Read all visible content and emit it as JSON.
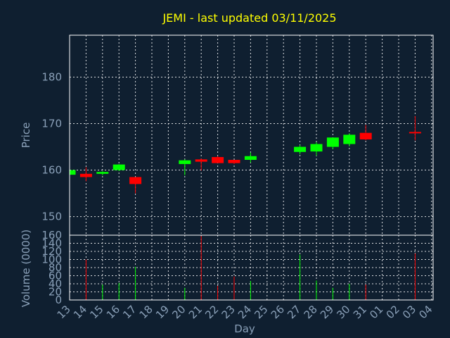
{
  "chart_data": [
    {
      "type": "candlestick",
      "title": "JEMI - last updated 03/11/2025",
      "ylabel": "Price",
      "ylim": [
        146,
        189
      ],
      "yticks": [
        150,
        160,
        170,
        180
      ],
      "grid": true,
      "colors": {
        "up": "#00ff00",
        "down": "#ff0000",
        "background": "#0f1f30",
        "text": "#8aa0b8",
        "title": "#ffff00"
      },
      "categories": [
        "13",
        "14",
        "15",
        "16",
        "17",
        "18",
        "19",
        "20",
        "21",
        "22",
        "23",
        "24",
        "25",
        "26",
        "27",
        "28",
        "29",
        "30",
        "31",
        "01",
        "02",
        "03",
        "04"
      ],
      "candles": [
        {
          "day": "13",
          "open": 159.0,
          "high": 160.0,
          "low": 158.8,
          "close": 160.0
        },
        {
          "day": "14",
          "open": 159.2,
          "high": 160.6,
          "low": 157.6,
          "close": 158.5
        },
        {
          "day": "15",
          "open": 159.2,
          "high": 159.8,
          "low": 158.9,
          "close": 159.6
        },
        {
          "day": "16",
          "open": 160.0,
          "high": 161.3,
          "low": 159.8,
          "close": 161.2
        },
        {
          "day": "17",
          "open": 158.5,
          "high": 158.5,
          "low": 155.0,
          "close": 157.0
        },
        {
          "day": "20",
          "open": 161.3,
          "high": 162.3,
          "low": 158.9,
          "close": 162.1
        },
        {
          "day": "21",
          "open": 162.3,
          "high": 162.5,
          "low": 159.9,
          "close": 161.8
        },
        {
          "day": "22",
          "open": 162.8,
          "high": 163.0,
          "low": 161.5,
          "close": 161.5
        },
        {
          "day": "23",
          "open": 162.2,
          "high": 162.2,
          "low": 161.3,
          "close": 161.5
        },
        {
          "day": "24",
          "open": 162.2,
          "high": 163.8,
          "low": 161.6,
          "close": 163.0
        },
        {
          "day": "27",
          "open": 163.9,
          "high": 165.4,
          "low": 163.4,
          "close": 165.0
        },
        {
          "day": "28",
          "open": 164.0,
          "high": 166.0,
          "low": 163.1,
          "close": 165.6
        },
        {
          "day": "29",
          "open": 165.0,
          "high": 167.0,
          "low": 164.5,
          "close": 167.0
        },
        {
          "day": "30",
          "open": 165.6,
          "high": 167.9,
          "low": 165.1,
          "close": 167.6
        },
        {
          "day": "31",
          "open": 168.0,
          "high": 169.7,
          "low": 166.4,
          "close": 166.6
        },
        {
          "day": "03",
          "open": 168.2,
          "high": 171.6,
          "low": 166.4,
          "close": 168.0
        }
      ]
    },
    {
      "type": "bar",
      "ylabel": "Volume (0000)",
      "xlabel": "Day",
      "ylim": [
        0,
        160
      ],
      "yticks": [
        0,
        20,
        40,
        60,
        80,
        100,
        120,
        140,
        160
      ],
      "grid": true,
      "categories": [
        "13",
        "14",
        "15",
        "16",
        "17",
        "18",
        "19",
        "20",
        "21",
        "22",
        "23",
        "24",
        "25",
        "26",
        "27",
        "28",
        "29",
        "30",
        "31",
        "01",
        "02",
        "03",
        "04"
      ],
      "values": [
        {
          "day": "14",
          "value": 100,
          "color": "#ff0000"
        },
        {
          "day": "15",
          "value": 38,
          "color": "#00ff00"
        },
        {
          "day": "16",
          "value": 42,
          "color": "#00ff00"
        },
        {
          "day": "17",
          "value": 82,
          "color": "#00ff00"
        },
        {
          "day": "20",
          "value": 30,
          "color": "#00ff00"
        },
        {
          "day": "21",
          "value": 158,
          "color": "#ff0000"
        },
        {
          "day": "22",
          "value": 35,
          "color": "#ff0000"
        },
        {
          "day": "23",
          "value": 58,
          "color": "#ff0000"
        },
        {
          "day": "24",
          "value": 47,
          "color": "#00ff00"
        },
        {
          "day": "27",
          "value": 112,
          "color": "#00ff00"
        },
        {
          "day": "28",
          "value": 48,
          "color": "#00ff00"
        },
        {
          "day": "29",
          "value": 30,
          "color": "#00ff00"
        },
        {
          "day": "30",
          "value": 40,
          "color": "#00ff00"
        },
        {
          "day": "31",
          "value": 38,
          "color": "#ff0000"
        },
        {
          "day": "03",
          "value": 115,
          "color": "#ff0000"
        }
      ]
    }
  ]
}
